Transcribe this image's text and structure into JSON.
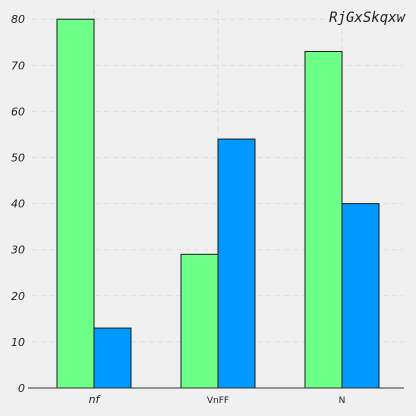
{
  "chart_data": {
    "type": "bar",
    "title": "RjGxSkqxw",
    "categories": [
      "nf",
      "VnFF",
      "N"
    ],
    "series": [
      {
        "values": [
          80,
          29,
          73
        ],
        "color": "#6dff88"
      },
      {
        "values": [
          13,
          54,
          40
        ],
        "color": "#0099ff"
      }
    ],
    "ylim": [
      0,
      82
    ],
    "yticks": [
      0,
      10,
      20,
      30,
      40,
      50,
      60,
      70,
      80
    ],
    "grid": true,
    "legend": "none"
  },
  "colors": {
    "background": "#f0f0f0",
    "grid": "#dddddd",
    "axis": "#333333",
    "bar_edge": "#1a1a1a"
  }
}
